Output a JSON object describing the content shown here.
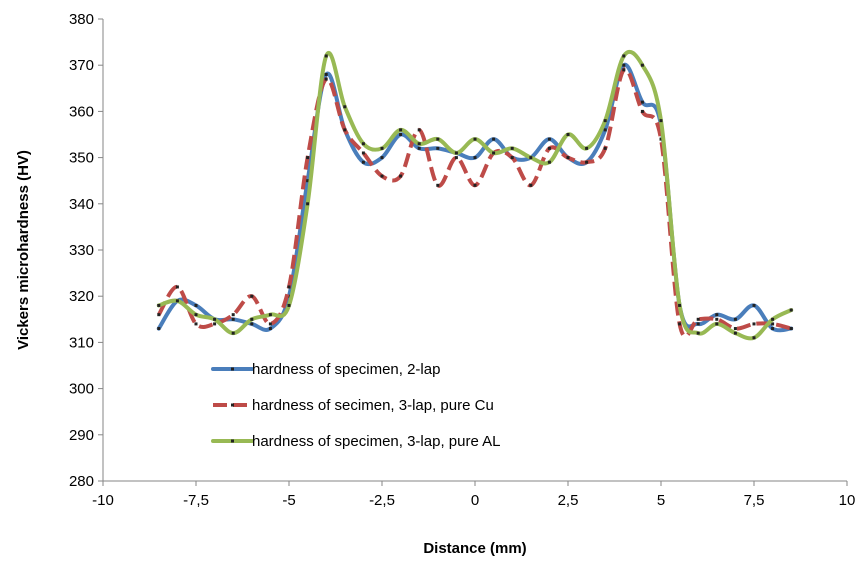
{
  "chart_data": {
    "type": "line",
    "title": "",
    "xlabel": "Distance (mm)",
    "ylabel": "Vickers microhardness (HV)",
    "xlim": [
      -10,
      10
    ],
    "ylim": [
      280,
      380
    ],
    "x_ticks": [
      -10,
      -7.5,
      -5,
      -2.5,
      0,
      2.5,
      5,
      7.5,
      10
    ],
    "x_tick_labels": [
      "-10",
      "-7,5",
      "-5",
      "-2,5",
      "0",
      "2,5",
      "5",
      "7,5",
      "10"
    ],
    "y_ticks": [
      280,
      290,
      300,
      310,
      320,
      330,
      340,
      350,
      360,
      370,
      380
    ],
    "y_tick_labels": [
      "280",
      "290",
      "300",
      "310",
      "320",
      "330",
      "340",
      "350",
      "360",
      "370",
      "380"
    ],
    "grid": false,
    "legend_position": "inside lower-left",
    "series": [
      {
        "name": "hardness of specimen, 2-lap",
        "color": "#4a7ebb",
        "dash": "solid",
        "x": [
          -8.5,
          -8.0,
          -7.5,
          -7.0,
          -6.5,
          -6.0,
          -5.5,
          -5.0,
          -4.5,
          -4.0,
          -3.5,
          -3.0,
          -2.5,
          -2.0,
          -1.5,
          -1.0,
          -0.5,
          0.0,
          0.5,
          1.0,
          1.5,
          2.0,
          2.5,
          3.0,
          3.5,
          4.0,
          4.5,
          5.0,
          5.5,
          6.0,
          6.5,
          7.0,
          7.5,
          8.0,
          8.5
        ],
        "y": [
          313,
          319,
          318,
          315,
          315,
          314,
          313,
          320,
          345,
          368,
          356,
          349,
          350,
          355,
          352,
          352,
          351,
          350,
          354,
          350,
          350,
          354,
          350,
          349,
          356,
          370,
          362,
          357,
          318,
          314,
          316,
          315,
          318,
          313,
          313
        ]
      },
      {
        "name": "hardness of secimen, 3-lap, pure Cu",
        "color": "#be4b48",
        "dash": "dashed",
        "x": [
          -8.5,
          -8.0,
          -7.5,
          -7.0,
          -6.5,
          -6.0,
          -5.5,
          -5.0,
          -4.5,
          -4.0,
          -3.5,
          -3.0,
          -2.5,
          -2.0,
          -1.5,
          -1.0,
          -0.5,
          0.0,
          0.5,
          1.0,
          1.5,
          2.0,
          2.5,
          3.0,
          3.5,
          4.0,
          4.5,
          5.0,
          5.5,
          6.0,
          6.5,
          7.0,
          7.5,
          8.0,
          8.5
        ],
        "y": [
          316,
          322,
          314,
          314,
          316,
          320,
          314,
          322,
          350,
          367,
          356,
          351,
          346,
          346,
          356,
          344,
          350,
          344,
          351,
          350,
          344,
          352,
          350,
          349,
          352,
          369,
          360,
          354,
          314,
          315,
          315,
          313,
          314,
          314,
          313
        ]
      },
      {
        "name": "hardness of specimen, 3-lap, pure AL",
        "color": "#98b954",
        "dash": "solid",
        "x": [
          -8.5,
          -8.0,
          -7.5,
          -7.0,
          -6.5,
          -6.0,
          -5.5,
          -5.0,
          -4.5,
          -4.0,
          -3.5,
          -3.0,
          -2.5,
          -2.0,
          -1.5,
          -1.0,
          -0.5,
          0.0,
          0.5,
          1.0,
          1.5,
          2.0,
          2.5,
          3.0,
          3.5,
          4.0,
          4.5,
          5.0,
          5.5,
          6.0,
          6.5,
          7.0,
          7.5,
          8.0,
          8.5
        ],
        "y": [
          318,
          319,
          316,
          315,
          312,
          315,
          316,
          318,
          340,
          372,
          361,
          353,
          352,
          356,
          353,
          354,
          351,
          354,
          351,
          352,
          350,
          349,
          355,
          352,
          358,
          372,
          370,
          358,
          318,
          312,
          314,
          312,
          311,
          315,
          317
        ]
      }
    ]
  }
}
